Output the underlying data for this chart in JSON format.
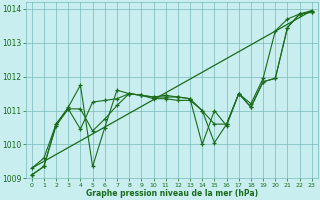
{
  "title": "Graphe pression niveau de la mer (hPa)",
  "background_color": "#c8eef0",
  "grid_color": "#7ab8ba",
  "line_color": "#1a6b1a",
  "ylim": [
    1009.0,
    1014.2
  ],
  "xlim": [
    -0.5,
    23.5
  ],
  "yticks": [
    1009,
    1010,
    1011,
    1012,
    1013,
    1014
  ],
  "xticks": [
    0,
    1,
    2,
    3,
    4,
    5,
    6,
    7,
    8,
    9,
    10,
    11,
    12,
    13,
    14,
    15,
    16,
    17,
    18,
    19,
    20,
    21,
    22,
    23
  ],
  "straight_line": [
    1009.3,
    1013.95
  ],
  "series": [
    [
      1009.3,
      1009.6,
      1010.6,
      1011.1,
      1011.75,
      1009.35,
      1010.5,
      1011.6,
      1011.5,
      1011.45,
      1011.4,
      1011.45,
      1011.4,
      1011.35,
      1010.0,
      1011.0,
      1010.55,
      1011.5,
      1011.2,
      1011.95,
      1013.35,
      1013.7,
      1013.85,
      1013.95
    ],
    [
      1009.1,
      1009.35,
      1010.6,
      1011.05,
      1011.05,
      1010.4,
      1010.75,
      1011.15,
      1011.5,
      1011.45,
      1011.35,
      1011.35,
      1011.3,
      1011.3,
      1011.0,
      1010.6,
      1010.6,
      1011.5,
      1011.1,
      1011.85,
      1011.95,
      1013.45,
      1013.85,
      1013.9
    ],
    [
      1009.1,
      1009.35,
      1010.55,
      1011.05,
      1010.45,
      1011.25,
      1011.3,
      1011.35,
      1011.5,
      1011.45,
      1011.4,
      1011.4,
      1011.4,
      1011.35,
      1011.0,
      1010.05,
      1010.6,
      1011.5,
      1011.1,
      1011.85,
      1011.95,
      1013.45,
      1013.85,
      1013.9
    ]
  ]
}
